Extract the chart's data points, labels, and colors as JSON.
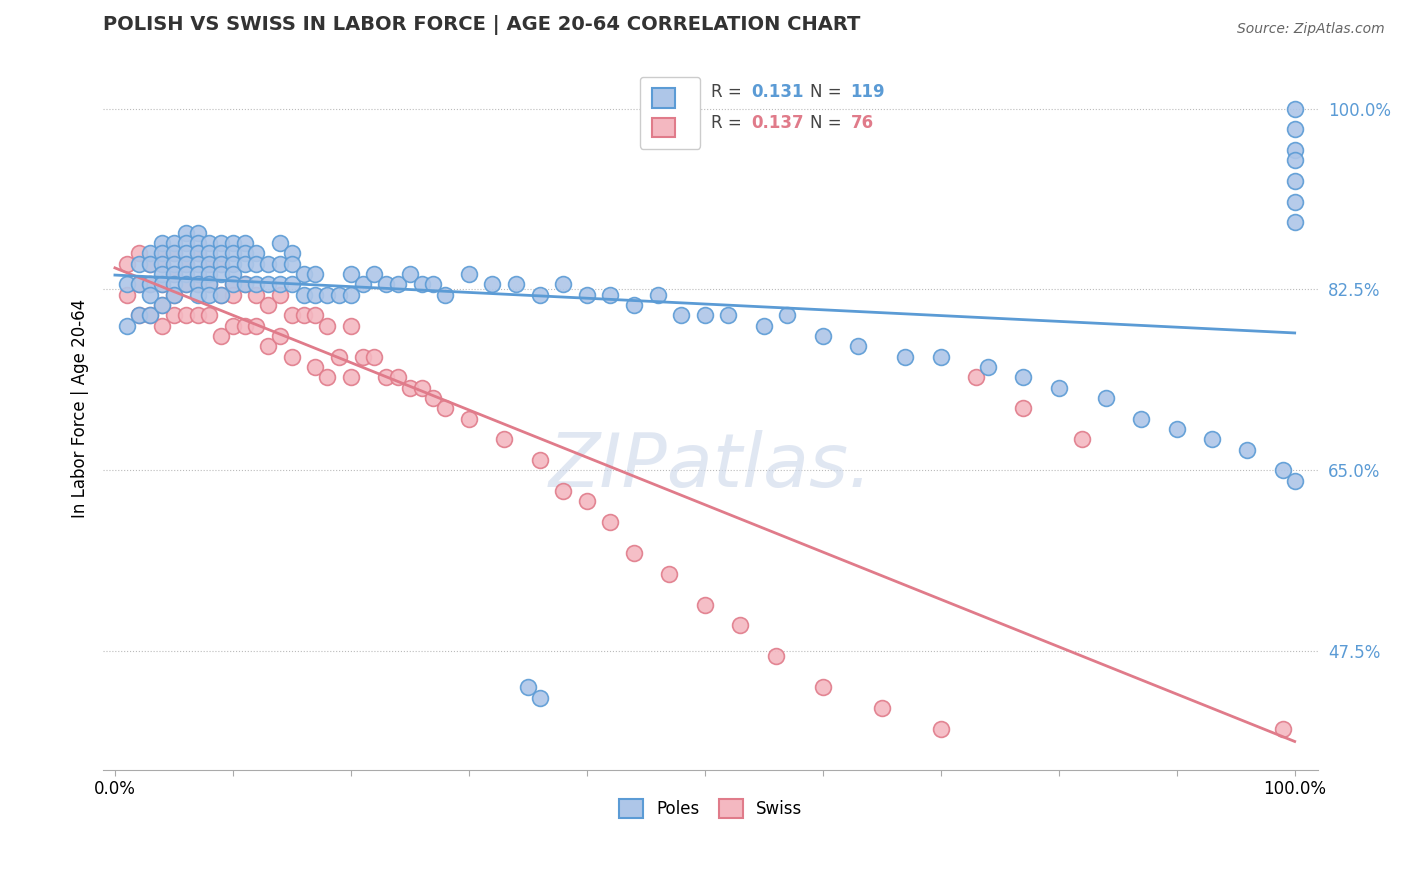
{
  "title": "POLISH VS SWISS IN LABOR FORCE | AGE 20-64 CORRELATION CHART",
  "source_text": "Source: ZipAtlas.com",
  "ylabel": "In Labor Force | Age 20-64",
  "poles_color": "#aec6e8",
  "poles_edge_color": "#5b9bd5",
  "swiss_color": "#f4b8c1",
  "swiss_edge_color": "#e07b8a",
  "trend_poles_color": "#5b9bd5",
  "trend_swiss_color": "#e07b8a",
  "poles_R": 0.131,
  "poles_N": 119,
  "swiss_R": 0.137,
  "swiss_N": 76,
  "watermark": "ZIPatlas.",
  "ytick_vals": [
    0.475,
    0.65,
    0.825,
    1.0
  ],
  "ytick_labels": [
    "47.5%",
    "65.0%",
    "82.5%",
    "100.0%"
  ],
  "xtick_vals": [
    0.0,
    0.1,
    0.2,
    0.3,
    0.4,
    0.5,
    0.6,
    0.7,
    0.8,
    0.9,
    1.0
  ],
  "xtick_labels": [
    "0.0%",
    "",
    "",
    "",
    "",
    "",
    "",
    "",
    "",
    "",
    "100.0%"
  ],
  "poles_x": [
    0.01,
    0.01,
    0.02,
    0.02,
    0.02,
    0.03,
    0.03,
    0.03,
    0.03,
    0.03,
    0.04,
    0.04,
    0.04,
    0.04,
    0.04,
    0.04,
    0.05,
    0.05,
    0.05,
    0.05,
    0.05,
    0.05,
    0.06,
    0.06,
    0.06,
    0.06,
    0.06,
    0.06,
    0.07,
    0.07,
    0.07,
    0.07,
    0.07,
    0.07,
    0.07,
    0.08,
    0.08,
    0.08,
    0.08,
    0.08,
    0.08,
    0.09,
    0.09,
    0.09,
    0.09,
    0.09,
    0.1,
    0.1,
    0.1,
    0.1,
    0.1,
    0.11,
    0.11,
    0.11,
    0.11,
    0.12,
    0.12,
    0.12,
    0.13,
    0.13,
    0.14,
    0.14,
    0.14,
    0.15,
    0.15,
    0.15,
    0.16,
    0.16,
    0.17,
    0.17,
    0.18,
    0.19,
    0.2,
    0.2,
    0.21,
    0.22,
    0.23,
    0.24,
    0.25,
    0.26,
    0.27,
    0.28,
    0.3,
    0.32,
    0.34,
    0.36,
    0.38,
    0.4,
    0.42,
    0.44,
    0.46,
    0.48,
    0.5,
    0.52,
    0.55,
    0.57,
    0.6,
    0.63,
    0.67,
    0.7,
    0.74,
    0.77,
    0.8,
    0.84,
    0.87,
    0.9,
    0.93,
    0.96,
    0.99,
    1.0,
    0.35,
    0.36,
    1.0,
    1.0,
    1.0,
    1.0,
    1.0,
    1.0,
    1.0
  ],
  "poles_y": [
    0.83,
    0.79,
    0.85,
    0.83,
    0.8,
    0.86,
    0.85,
    0.83,
    0.82,
    0.8,
    0.87,
    0.86,
    0.85,
    0.84,
    0.83,
    0.81,
    0.87,
    0.86,
    0.85,
    0.84,
    0.83,
    0.82,
    0.88,
    0.87,
    0.86,
    0.85,
    0.84,
    0.83,
    0.88,
    0.87,
    0.86,
    0.85,
    0.84,
    0.83,
    0.82,
    0.87,
    0.86,
    0.85,
    0.84,
    0.83,
    0.82,
    0.87,
    0.86,
    0.85,
    0.84,
    0.82,
    0.87,
    0.86,
    0.85,
    0.84,
    0.83,
    0.87,
    0.86,
    0.85,
    0.83,
    0.86,
    0.85,
    0.83,
    0.85,
    0.83,
    0.87,
    0.85,
    0.83,
    0.86,
    0.85,
    0.83,
    0.84,
    0.82,
    0.84,
    0.82,
    0.82,
    0.82,
    0.84,
    0.82,
    0.83,
    0.84,
    0.83,
    0.83,
    0.84,
    0.83,
    0.83,
    0.82,
    0.84,
    0.83,
    0.83,
    0.82,
    0.83,
    0.82,
    0.82,
    0.81,
    0.82,
    0.8,
    0.8,
    0.8,
    0.79,
    0.8,
    0.78,
    0.77,
    0.76,
    0.76,
    0.75,
    0.74,
    0.73,
    0.72,
    0.7,
    0.69,
    0.68,
    0.67,
    0.65,
    0.64,
    0.44,
    0.43,
    1.0,
    0.98,
    0.96,
    0.95,
    0.93,
    0.91,
    0.89
  ],
  "swiss_x": [
    0.01,
    0.01,
    0.02,
    0.02,
    0.02,
    0.03,
    0.03,
    0.03,
    0.04,
    0.04,
    0.04,
    0.04,
    0.04,
    0.05,
    0.05,
    0.05,
    0.05,
    0.06,
    0.06,
    0.06,
    0.07,
    0.07,
    0.07,
    0.08,
    0.08,
    0.08,
    0.09,
    0.09,
    0.09,
    0.1,
    0.1,
    0.1,
    0.11,
    0.11,
    0.12,
    0.12,
    0.13,
    0.13,
    0.14,
    0.14,
    0.15,
    0.15,
    0.16,
    0.17,
    0.17,
    0.18,
    0.18,
    0.19,
    0.2,
    0.2,
    0.21,
    0.22,
    0.23,
    0.24,
    0.25,
    0.26,
    0.27,
    0.28,
    0.3,
    0.33,
    0.36,
    0.38,
    0.4,
    0.42,
    0.44,
    0.47,
    0.5,
    0.53,
    0.56,
    0.6,
    0.65,
    0.7,
    0.73,
    0.77,
    0.82,
    0.99
  ],
  "swiss_y": [
    0.85,
    0.82,
    0.86,
    0.83,
    0.8,
    0.85,
    0.83,
    0.8,
    0.86,
    0.85,
    0.83,
    0.81,
    0.79,
    0.86,
    0.84,
    0.82,
    0.8,
    0.85,
    0.83,
    0.8,
    0.86,
    0.83,
    0.8,
    0.85,
    0.83,
    0.8,
    0.85,
    0.82,
    0.78,
    0.83,
    0.82,
    0.79,
    0.83,
    0.79,
    0.82,
    0.79,
    0.81,
    0.77,
    0.82,
    0.78,
    0.8,
    0.76,
    0.8,
    0.8,
    0.75,
    0.79,
    0.74,
    0.76,
    0.79,
    0.74,
    0.76,
    0.76,
    0.74,
    0.74,
    0.73,
    0.73,
    0.72,
    0.71,
    0.7,
    0.68,
    0.66,
    0.63,
    0.62,
    0.6,
    0.57,
    0.55,
    0.52,
    0.5,
    0.47,
    0.44,
    0.42,
    0.4,
    0.74,
    0.71,
    0.68,
    0.4
  ]
}
